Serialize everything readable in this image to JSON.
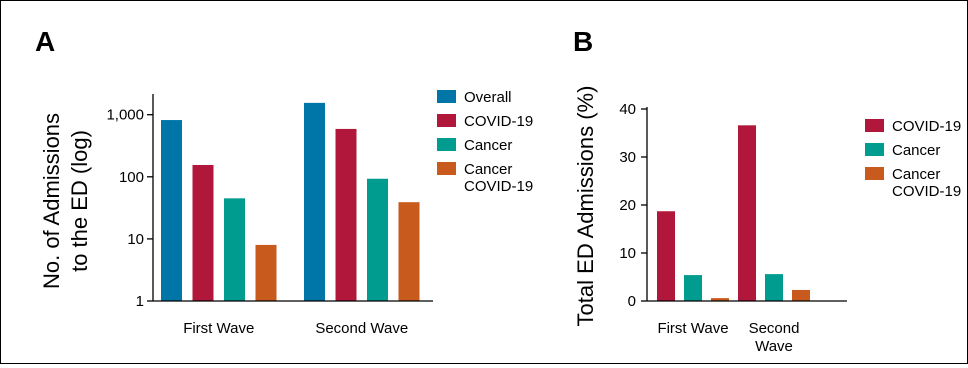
{
  "chart_data": [
    {
      "panel": "A",
      "type": "bar",
      "ylabel": [
        "No. of Admissions",
        "to the ED (log)"
      ],
      "yscale": "log",
      "ylim": [
        1,
        2000
      ],
      "yticks": [
        1,
        10,
        100,
        1000
      ],
      "ytick_labels": [
        "1",
        "10",
        "100",
        "1,000"
      ],
      "categories": [
        "First Wave",
        "Second Wave"
      ],
      "series": [
        {
          "name": "Overall",
          "color": "#0076a8",
          "values": [
            820,
            1550
          ]
        },
        {
          "name": "COVID-19",
          "color": "#b0173a",
          "values": [
            155,
            590
          ]
        },
        {
          "name": "Cancer",
          "color": "#009c8f",
          "values": [
            45,
            93
          ]
        },
        {
          "name": "Cancer COVID-19",
          "color": "#c85a1d",
          "values": [
            8,
            39
          ]
        }
      ],
      "legend_labels": [
        [
          "Overall"
        ],
        [
          "COVID-19"
        ],
        [
          "Cancer"
        ],
        [
          "Cancer",
          "COVID-19"
        ]
      ],
      "legend": "right",
      "grid": false
    },
    {
      "panel": "B",
      "type": "bar",
      "ylabel": [
        "Total ED Admissions (%)"
      ],
      "yscale": "linear",
      "ylim": [
        0,
        40
      ],
      "yticks": [
        0,
        10,
        20,
        30,
        40
      ],
      "ytick_labels": [
        "0",
        "10",
        "20",
        "30",
        "40"
      ],
      "categories": [
        "First Wave",
        "Second Wave"
      ],
      "category_lines": [
        [
          "First Wave"
        ],
        [
          "Second",
          "Wave"
        ]
      ],
      "series": [
        {
          "name": "COVID-19",
          "color": "#b0173a",
          "values": [
            18.7,
            36.6
          ]
        },
        {
          "name": "Cancer",
          "color": "#009c8f",
          "values": [
            5.4,
            5.6
          ]
        },
        {
          "name": "Cancer COVID-19",
          "color": "#c85a1d",
          "values": [
            0.6,
            2.3
          ]
        }
      ],
      "legend_labels": [
        [
          "COVID-19"
        ],
        [
          "Cancer"
        ],
        [
          "Cancer",
          "COVID-19"
        ]
      ],
      "legend": "right",
      "grid": false
    }
  ]
}
